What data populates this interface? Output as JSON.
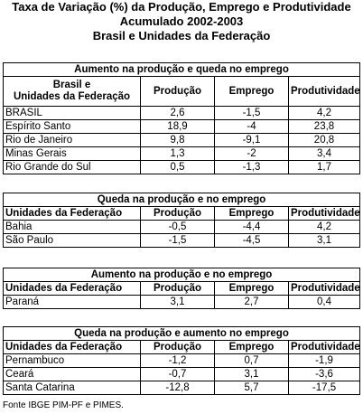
{
  "title_lines": [
    "Taxa de Variação (%) da Produção, Emprego  e Produtividade",
    "Acumulado 2002-2003",
    "Brasil e Unidades da Federação"
  ],
  "columns": {
    "state_stacked": [
      "Brasil e",
      "Unidades da Federação"
    ],
    "state": "Unidades da Federação",
    "production": "Produção",
    "employment": "Emprego",
    "productivity": "Produtividade"
  },
  "sections": [
    {
      "title": "Aumento na produção e queda no emprego",
      "rows": [
        {
          "name": "BRASIL",
          "production": "2,6",
          "employment": "-1,5",
          "productivity": "4,2"
        },
        {
          "name": "Espírito Santo",
          "production": "18,9",
          "employment": "-4",
          "productivity": "23,8"
        },
        {
          "name": "Rio de Janeiro",
          "production": "9,8",
          "employment": "-9,1",
          "productivity": "20,8"
        },
        {
          "name": "Minas Gerais",
          "production": "1,3",
          "employment": "-2",
          "productivity": "3,4"
        },
        {
          "name": "Rio Grande do Sul",
          "production": "0,5",
          "employment": "-1,3",
          "productivity": "1,7"
        }
      ]
    },
    {
      "title": "Queda na produção e no emprego",
      "rows": [
        {
          "name": "Bahia",
          "production": "-0,5",
          "employment": "-4,4",
          "productivity": "4,2"
        },
        {
          "name": "São Paulo",
          "production": "-1,5",
          "employment": "-4,5",
          "productivity": "3,1"
        }
      ]
    },
    {
      "title": "Aumento na produção e no emprego",
      "rows": [
        {
          "name": "Paraná",
          "production": "3,1",
          "employment": "2,7",
          "productivity": "0,4"
        }
      ]
    },
    {
      "title": "Queda na produção e aumento no emprego",
      "rows": [
        {
          "name": "Pernambuco",
          "production": "-1,2",
          "employment": "0,7",
          "productivity": "-1,9"
        },
        {
          "name": "Ceará",
          "production": "-0,7",
          "employment": "3,1",
          "productivity": "-3,6"
        },
        {
          "name": "Santa Catarina",
          "production": "-12,8",
          "employment": "5,7",
          "productivity": "-17,5"
        }
      ]
    }
  ],
  "source": "Fonte IBGE PIM-PF e PIMES."
}
